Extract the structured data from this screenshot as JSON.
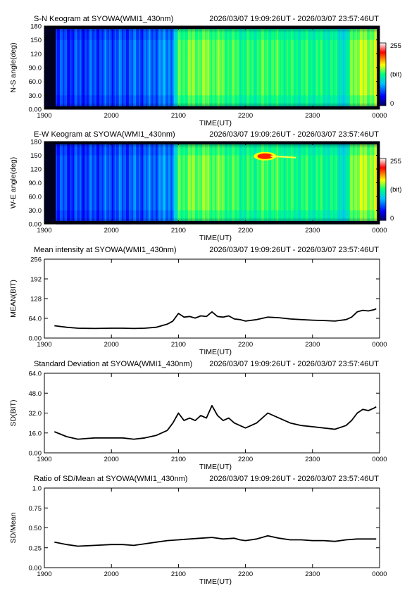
{
  "chart_data": [
    {
      "type": "heatmap",
      "title": "S-N Keogram at SYOWA(WMI1_430nm)",
      "time_range": "2026/03/07 19:09:26UT - 2026/03/07 23:57:46UT",
      "xlabel": "TIME(UT)",
      "ylabel": "N-S angle(deg)",
      "x_ticks": [
        "1900",
        "2000",
        "2100",
        "2200",
        "2300",
        "0000"
      ],
      "y_ticks": [
        "0.00",
        "30.0",
        "60.0",
        "90.0",
        "120",
        "150",
        "180"
      ],
      "ylim": [
        0,
        180
      ],
      "colorbar": {
        "max_label": "255",
        "unit_label": "(bit)",
        "min_label": "0"
      },
      "colormap": [
        "#000060",
        "#0000ff",
        "#00c0ff",
        "#00ff80",
        "#ffff00",
        "#ff0000",
        "#ffffff"
      ],
      "intensity_profile": [
        {
          "t": "19:09",
          "level": 0.22
        },
        {
          "t": "19:30",
          "level": 0.22
        },
        {
          "t": "20:00",
          "level": 0.24
        },
        {
          "t": "20:30",
          "level": 0.25
        },
        {
          "t": "20:55",
          "level": 0.3
        },
        {
          "t": "21:00",
          "level": 0.55
        },
        {
          "t": "21:20",
          "level": 0.58
        },
        {
          "t": "21:40",
          "level": 0.55
        },
        {
          "t": "22:00",
          "level": 0.5
        },
        {
          "t": "22:20",
          "level": 0.54
        },
        {
          "t": "22:40",
          "level": 0.5
        },
        {
          "t": "23:00",
          "level": 0.5
        },
        {
          "t": "23:20",
          "level": 0.48
        },
        {
          "t": "23:30",
          "level": 0.4
        },
        {
          "t": "23:35",
          "level": 0.6
        },
        {
          "t": "23:57",
          "level": 0.62
        }
      ],
      "bright_spot": null
    },
    {
      "type": "heatmap",
      "title": "E-W Keogram at SYOWA(WMI1_430nm)",
      "time_range": "2026/03/07 19:09:26UT - 2026/03/07 23:57:46UT",
      "xlabel": "TIME(UT)",
      "ylabel": "W-E angle(deg)",
      "x_ticks": [
        "1900",
        "2000",
        "2100",
        "2200",
        "2300",
        "0000"
      ],
      "y_ticks": [
        "0.00",
        "30.0",
        "60.0",
        "90.0",
        "120",
        "150",
        "180"
      ],
      "ylim": [
        0,
        180
      ],
      "colorbar": {
        "max_label": "255",
        "unit_label": "(bit)",
        "min_label": "0"
      },
      "colormap": [
        "#000060",
        "#0000ff",
        "#00c0ff",
        "#00ff80",
        "#ffff00",
        "#ff0000",
        "#ffffff"
      ],
      "intensity_profile": [
        {
          "t": "19:09",
          "level": 0.22
        },
        {
          "t": "19:30",
          "level": 0.22
        },
        {
          "t": "20:00",
          "level": 0.24
        },
        {
          "t": "20:30",
          "level": 0.25
        },
        {
          "t": "20:55",
          "level": 0.3
        },
        {
          "t": "21:00",
          "level": 0.55
        },
        {
          "t": "21:20",
          "level": 0.58
        },
        {
          "t": "21:40",
          "level": 0.55
        },
        {
          "t": "22:00",
          "level": 0.5
        },
        {
          "t": "22:20",
          "level": 0.54
        },
        {
          "t": "22:40",
          "level": 0.5
        },
        {
          "t": "23:00",
          "level": 0.5
        },
        {
          "t": "23:20",
          "level": 0.48
        },
        {
          "t": "23:30",
          "level": 0.4
        },
        {
          "t": "23:35",
          "level": 0.6
        },
        {
          "t": "23:57",
          "level": 0.62
        }
      ],
      "bright_spot": {
        "t_start": "22:10",
        "t_end": "22:45",
        "angle": 148
      }
    },
    {
      "type": "line",
      "title": "Mean intensity at SYOWA(WMI1_430nm)",
      "time_range": "2026/03/07 19:09:26UT - 2026/03/07 23:57:46UT",
      "xlabel": "TIME(UT)",
      "ylabel": "MEAN(BIT)",
      "x_ticks": [
        "1900",
        "2000",
        "2100",
        "2200",
        "2300",
        "0000"
      ],
      "y_ticks": [
        "0.00",
        "64.0",
        "128",
        "192",
        "256"
      ],
      "ylim": [
        0,
        256
      ],
      "series": [
        {
          "points": [
            [
              "19:09",
              40
            ],
            [
              "19:20",
              35
            ],
            [
              "19:30",
              32
            ],
            [
              "19:45",
              31
            ],
            [
              "20:00",
              32
            ],
            [
              "20:10",
              32
            ],
            [
              "20:20",
              31
            ],
            [
              "20:30",
              32
            ],
            [
              "20:40",
              35
            ],
            [
              "20:50",
              45
            ],
            [
              "20:55",
              55
            ],
            [
              "21:00",
              80
            ],
            [
              "21:05",
              68
            ],
            [
              "21:10",
              70
            ],
            [
              "21:15",
              65
            ],
            [
              "21:20",
              72
            ],
            [
              "21:25",
              70
            ],
            [
              "21:30",
              85
            ],
            [
              "21:35",
              70
            ],
            [
              "21:40",
              68
            ],
            [
              "21:45",
              72
            ],
            [
              "21:50",
              62
            ],
            [
              "21:55",
              60
            ],
            [
              "22:00",
              55
            ],
            [
              "22:10",
              60
            ],
            [
              "22:20",
              68
            ],
            [
              "22:30",
              66
            ],
            [
              "22:40",
              62
            ],
            [
              "22:50",
              60
            ],
            [
              "23:00",
              58
            ],
            [
              "23:10",
              57
            ],
            [
              "23:20",
              55
            ],
            [
              "23:30",
              60
            ],
            [
              "23:35",
              68
            ],
            [
              "23:40",
              85
            ],
            [
              "23:45",
              90
            ],
            [
              "23:50",
              88
            ],
            [
              "23:55",
              92
            ],
            [
              "23:57",
              95
            ]
          ]
        }
      ]
    },
    {
      "type": "line",
      "title": "Standard Deviation at SYOWA(WMI1_430nm)",
      "time_range": "2026/03/07 19:09:26UT - 2026/03/07 23:57:46UT",
      "xlabel": "TIME(UT)",
      "ylabel": "SD(BIT)",
      "x_ticks": [
        "1900",
        "2000",
        "2100",
        "2200",
        "2300",
        "0000"
      ],
      "y_ticks": [
        "0.00",
        "16.0",
        "32.0",
        "48.0",
        "64.0"
      ],
      "ylim": [
        0,
        64
      ],
      "series": [
        {
          "points": [
            [
              "19:09",
              17
            ],
            [
              "19:20",
              13
            ],
            [
              "19:30",
              11
            ],
            [
              "19:45",
              12
            ],
            [
              "20:00",
              12
            ],
            [
              "20:10",
              12
            ],
            [
              "20:20",
              11
            ],
            [
              "20:30",
              12
            ],
            [
              "20:40",
              14
            ],
            [
              "20:50",
              18
            ],
            [
              "20:55",
              24
            ],
            [
              "21:00",
              32
            ],
            [
              "21:05",
              26
            ],
            [
              "21:10",
              28
            ],
            [
              "21:15",
              26
            ],
            [
              "21:20",
              30
            ],
            [
              "21:25",
              28
            ],
            [
              "21:30",
              38
            ],
            [
              "21:35",
              30
            ],
            [
              "21:40",
              26
            ],
            [
              "21:45",
              28
            ],
            [
              "21:50",
              24
            ],
            [
              "21:55",
              22
            ],
            [
              "22:00",
              20
            ],
            [
              "22:10",
              24
            ],
            [
              "22:20",
              32
            ],
            [
              "22:30",
              28
            ],
            [
              "22:40",
              24
            ],
            [
              "22:50",
              22
            ],
            [
              "23:00",
              21
            ],
            [
              "23:10",
              20
            ],
            [
              "23:20",
              19
            ],
            [
              "23:30",
              22
            ],
            [
              "23:35",
              26
            ],
            [
              "23:40",
              32
            ],
            [
              "23:45",
              35
            ],
            [
              "23:50",
              34
            ],
            [
              "23:55",
              36
            ],
            [
              "23:57",
              37
            ]
          ]
        }
      ]
    },
    {
      "type": "line",
      "title": "Ratio of SD/Mean at SYOWA(WMI1_430nm)",
      "time_range": "2026/03/07 19:09:26UT - 2026/03/07 23:57:46UT",
      "xlabel": "TIME(UT)",
      "ylabel": "SD/Mean",
      "x_ticks": [
        "1900",
        "2000",
        "2100",
        "2200",
        "2300",
        "0000"
      ],
      "y_ticks": [
        "0.00",
        "0.25",
        "0.50",
        "0.75",
        "1.0"
      ],
      "ylim": [
        0,
        1.0
      ],
      "series": [
        {
          "points": [
            [
              "19:09",
              0.32
            ],
            [
              "19:20",
              0.29
            ],
            [
              "19:30",
              0.27
            ],
            [
              "19:45",
              0.28
            ],
            [
              "20:00",
              0.29
            ],
            [
              "20:10",
              0.29
            ],
            [
              "20:20",
              0.28
            ],
            [
              "20:30",
              0.3
            ],
            [
              "20:40",
              0.32
            ],
            [
              "20:50",
              0.34
            ],
            [
              "21:00",
              0.35
            ],
            [
              "21:10",
              0.36
            ],
            [
              "21:20",
              0.37
            ],
            [
              "21:30",
              0.38
            ],
            [
              "21:40",
              0.36
            ],
            [
              "21:50",
              0.37
            ],
            [
              "21:55",
              0.35
            ],
            [
              "22:00",
              0.34
            ],
            [
              "22:10",
              0.36
            ],
            [
              "22:20",
              0.4
            ],
            [
              "22:30",
              0.37
            ],
            [
              "22:40",
              0.35
            ],
            [
              "22:50",
              0.35
            ],
            [
              "23:00",
              0.34
            ],
            [
              "23:10",
              0.34
            ],
            [
              "23:20",
              0.33
            ],
            [
              "23:30",
              0.35
            ],
            [
              "23:40",
              0.36
            ],
            [
              "23:50",
              0.36
            ],
            [
              "23:57",
              0.36
            ]
          ]
        }
      ]
    }
  ]
}
